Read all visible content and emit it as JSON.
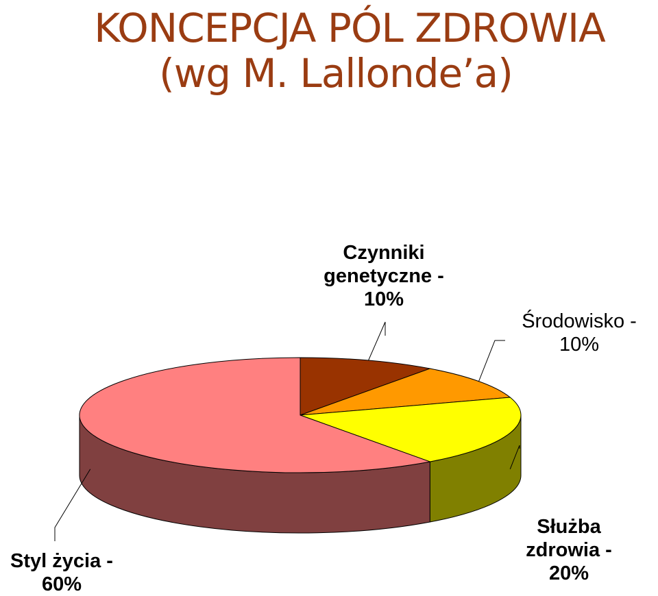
{
  "header": {
    "title_line1": "KONCEPCJA PÓL ZDROWIA",
    "title_line2": "(wg M. Lallonde’a)"
  },
  "chart_data": {
    "type": "pie",
    "style": "3d",
    "title": "KONCEPCJA PÓL ZDROWIA (wg M. Lallonde’a)",
    "slices": [
      {
        "key": "genetics",
        "label_lines": [
          "Czynniki",
          "genetyczne -",
          "10%"
        ],
        "value": 10,
        "top_color": "#993300",
        "side_color": "#6b2400"
      },
      {
        "key": "environment",
        "label_lines": [
          "Środowisko -",
          "10%"
        ],
        "value": 10,
        "top_color": "#ff9900",
        "side_color": "#b36b00"
      },
      {
        "key": "healthcare",
        "label_lines": [
          "Służba",
          "zdrowia -",
          "20%"
        ],
        "value": 20,
        "top_color": "#ffff00",
        "side_color": "#808000"
      },
      {
        "key": "lifestyle",
        "label_lines": [
          "Styl życia -",
          "60%"
        ],
        "value": 60,
        "top_color": "#ff8080",
        "side_color": "#804040"
      }
    ]
  }
}
